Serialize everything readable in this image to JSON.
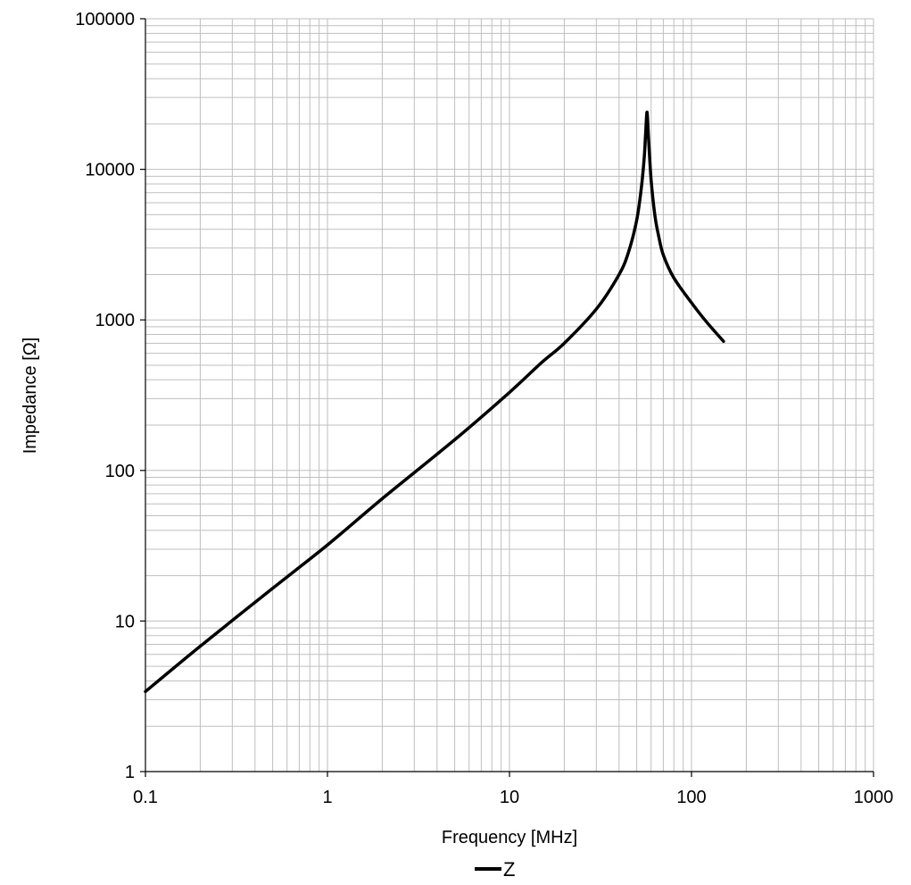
{
  "chart_data": {
    "type": "line",
    "title": "",
    "xlabel": "Frequency [MHz]",
    "ylabel": "Impedance [Ω]",
    "x_scale": "log",
    "y_scale": "log",
    "xlim": [
      0.1,
      1000
    ],
    "ylim": [
      1,
      100000
    ],
    "x_ticks": [
      "0.1",
      "1",
      "10",
      "100",
      "1000"
    ],
    "y_ticks": [
      "1",
      "10",
      "100",
      "1000",
      "10000",
      "100000"
    ],
    "grid": true,
    "legend_position": "bottom",
    "series": [
      {
        "name": "Z",
        "color": "#000000",
        "x": [
          0.1,
          0.2,
          0.5,
          1,
          2,
          5,
          10,
          15,
          20,
          30,
          40,
          45,
          50,
          53,
          55,
          56,
          57,
          58,
          60,
          63,
          66,
          70,
          80,
          100,
          120,
          150
        ],
        "y": [
          3.4,
          6.8,
          16.5,
          32,
          65,
          160,
          330,
          520,
          700,
          1180,
          2000,
          2800,
          4600,
          7500,
          12000,
          17500,
          24000,
          16500,
          8500,
          4900,
          3600,
          2700,
          1900,
          1300,
          980,
          720
        ]
      }
    ]
  },
  "colors": {
    "grid": "#bfbfbf",
    "axis": "#000000",
    "background": "#ffffff"
  }
}
